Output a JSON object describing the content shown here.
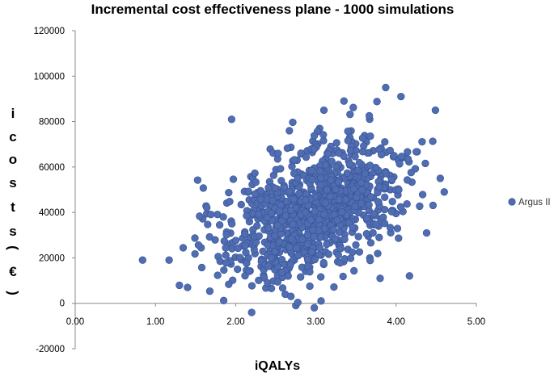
{
  "chart_data": {
    "type": "scatter",
    "title": "Incremental cost effectiveness plane - 1000 simulations",
    "xlabel": "iQALYs",
    "ylabel": "icosts (€)",
    "ylabel_chars": [
      "i",
      "c",
      "o",
      "s",
      "t",
      "s",
      "(",
      "€",
      ")"
    ],
    "xlim": [
      0,
      5
    ],
    "ylim": [
      -20000,
      120000
    ],
    "x_ticks": [
      0,
      1,
      2,
      3,
      4,
      5
    ],
    "x_tick_labels": [
      "0.00",
      "1.00",
      "2.00",
      "3.00",
      "4.00",
      "5.00"
    ],
    "y_ticks": [
      -20000,
      0,
      20000,
      40000,
      60000,
      80000,
      100000,
      120000
    ],
    "y_tick_labels": [
      "-20000",
      "0",
      "20000",
      "40000",
      "60000",
      "80000",
      "100000",
      "120000"
    ],
    "grid": false,
    "legend_position": "right",
    "series": [
      {
        "name": "Argus II",
        "color": "#4F6DB0",
        "edge_color": "#3A559A",
        "n_points": 1000,
        "distribution": {
          "x_mean": 2.95,
          "x_sd": 0.55,
          "y_mean": 41000,
          "y_sd": 15500,
          "correlation": 0.42,
          "x_range": [
            0.8,
            4.7
          ],
          "y_range": [
            -4000,
            96000
          ]
        },
        "highlighted_points": [
          [
            0.84,
            19000
          ],
          [
            1.17,
            19000
          ],
          [
            1.4,
            7000
          ],
          [
            1.95,
            81000
          ],
          [
            3.87,
            95000
          ],
          [
            4.06,
            91000
          ],
          [
            4.49,
            85000
          ],
          [
            4.6,
            49000
          ],
          [
            4.55,
            55000
          ],
          [
            2.75,
            -1000
          ],
          [
            2.98,
            -2000
          ],
          [
            2.2,
            -4000
          ],
          [
            3.1,
            85000
          ],
          [
            3.35,
            89000
          ],
          [
            3.8,
            11000
          ],
          [
            4.38,
            31000
          ]
        ]
      }
    ]
  }
}
